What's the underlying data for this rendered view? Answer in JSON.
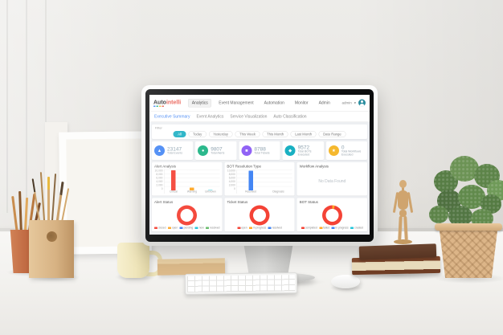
{
  "screen": {
    "navbar": {
      "logo_prefix": "Auto",
      "logo_suffix": "intelli",
      "menu": [
        {
          "label": "Analytics",
          "active": true
        },
        {
          "label": "Event Management"
        },
        {
          "label": "Automation"
        },
        {
          "label": "Monitor"
        },
        {
          "label": "Admin"
        }
      ],
      "user": {
        "name": "admin",
        "caret": "▾"
      }
    },
    "tabs": [
      {
        "label": "Executive Summary",
        "active": true
      },
      {
        "label": "Event Analytics"
      },
      {
        "label": "Service Visualization"
      },
      {
        "label": "Auto Classification"
      }
    ],
    "filter": {
      "label": "Filter",
      "active_color": "#1fb0c4",
      "chips": [
        {
          "label": "All",
          "active": true
        },
        {
          "label": "Today"
        },
        {
          "label": "Yesterday"
        },
        {
          "label": "This Week"
        },
        {
          "label": "This Month"
        },
        {
          "label": "Last Month"
        },
        {
          "label": "Date Range"
        }
      ]
    },
    "kpis": [
      {
        "value": "23147",
        "label": "Total Events",
        "color": "#4285f4",
        "glyph": "▲"
      },
      {
        "value": "9807",
        "label": "Total Alerts",
        "color": "#21b586",
        "glyph": "●"
      },
      {
        "value": "8788",
        "label": "Total Tickets",
        "color": "#8e5ff5",
        "glyph": "■"
      },
      {
        "value": "9572",
        "label": "Total BOTs Executed",
        "color": "#19b0c2",
        "glyph": "◆"
      },
      {
        "value": "0",
        "label": "Total Workflows Executed",
        "color": "#f5b82e",
        "glyph": "★"
      }
    ],
    "panels": {
      "alert_analysis": {
        "title": "Alert Analysis"
      },
      "bot_resolution": {
        "title": "BOT Resolution Type"
      },
      "workflow_analysis": {
        "title": "Workflow Analysis",
        "empty_text": "No Data Found"
      },
      "alert_status": {
        "title": "Alert Status",
        "legend": [
          {
            "label": "closed",
            "color": "#f44336"
          },
          {
            "label": "open",
            "color": "#ffa726"
          },
          {
            "label": "pending",
            "color": "#4285f4"
          },
          {
            "label": "new",
            "color": "#26c6da"
          },
          {
            "label": "resolved",
            "color": "#66bb6a"
          }
        ]
      },
      "ticket_status": {
        "title": "Ticket Status",
        "legend": [
          {
            "label": "open",
            "color": "#f44336"
          },
          {
            "label": "in progress",
            "color": "#ffa726"
          },
          {
            "label": "resolved",
            "color": "#4285f4"
          }
        ]
      },
      "bot_status": {
        "title": "BOT Status",
        "legend": [
          {
            "label": "completed",
            "color": "#f44336"
          },
          {
            "label": "failed",
            "color": "#ffa726"
          },
          {
            "label": "in progress",
            "color": "#4285f4"
          },
          {
            "label": "created",
            "color": "#26c6da"
          }
        ]
      }
    }
  },
  "chart_data": [
    {
      "type": "bar",
      "title": "Alert Analysis",
      "categories": [
        "Critical",
        "Warning",
        "Unknown"
      ],
      "values": [
        9500,
        1200,
        150
      ],
      "colors": [
        "#f44336",
        "#ffa726",
        "#26c6da"
      ],
      "ylim": [
        0,
        10000
      ],
      "yticks": [
        "10,000",
        "8,000",
        "6,000",
        "4,000",
        "2,000",
        "0"
      ],
      "grid": true,
      "xlabel": "",
      "ylabel": ""
    },
    {
      "type": "bar",
      "title": "BOT Resolution Type",
      "categories": [
        "Resolved",
        "Diagnosis"
      ],
      "values": [
        9300,
        0
      ],
      "colors": [
        "#4285f4",
        "#4285f4"
      ],
      "ylim": [
        0,
        10000
      ],
      "yticks": [
        "10,000",
        "8,000",
        "6,000",
        "4,000",
        "2,000",
        "0"
      ],
      "grid": true,
      "xlabel": "",
      "ylabel": ""
    },
    {
      "type": "pie",
      "title": "Alert Status",
      "segments": [
        {
          "label": "closed",
          "color": "#f44336",
          "value": 100
        },
        {
          "label": "open",
          "color": "#ffa726",
          "value": 0
        },
        {
          "label": "pending",
          "color": "#4285f4",
          "value": 0
        },
        {
          "label": "new",
          "color": "#26c6da",
          "value": 0
        },
        {
          "label": "resolved",
          "color": "#66bb6a",
          "value": 0
        }
      ],
      "legend_position": "bottom"
    },
    {
      "type": "pie",
      "title": "Ticket Status",
      "segments": [
        {
          "label": "open",
          "color": "#f44336",
          "value": 100
        },
        {
          "label": "in progress",
          "color": "#ffa726",
          "value": 0
        },
        {
          "label": "resolved",
          "color": "#4285f4",
          "value": 0
        }
      ],
      "legend_position": "bottom"
    },
    {
      "type": "pie",
      "title": "BOT Status",
      "segments": [
        {
          "label": "failed",
          "color": "#ffa726",
          "value": 4
        },
        {
          "label": "completed",
          "color": "#f44336",
          "value": 96
        },
        {
          "label": "in progress",
          "color": "#4285f4",
          "value": 0
        },
        {
          "label": "created",
          "color": "#26c6da",
          "value": 0
        }
      ],
      "legend_position": "bottom"
    }
  ]
}
